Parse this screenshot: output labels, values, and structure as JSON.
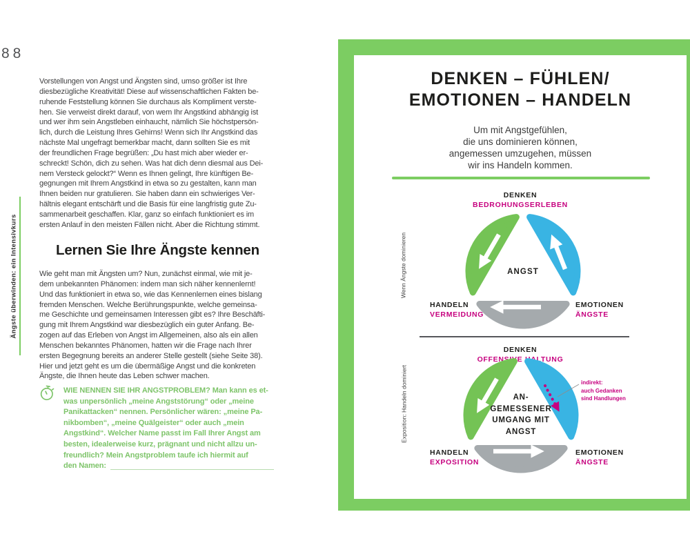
{
  "page": {
    "number": "88",
    "sidebar_label": "Ängste überwinden: ein Intensivkurs"
  },
  "left": {
    "paragraph1_lines": [
      "Vorstellungen von Angst und Ängsten sind, umso größer ist Ihre",
      "diesbezügliche Kreativität! Diese auf wissenschaftlichen Fakten be-",
      "ruhende Feststellung können Sie durchaus als Kompliment verste-",
      "hen. Sie verweist direkt darauf, von wem Ihr Angstkind abhängig ist",
      "und wer ihm sein Angstleben einhaucht, nämlich Sie höchstpersön-",
      "lich, durch die Leistung Ihres Gehirns! Wenn sich Ihr Angstkind das",
      "nächste Mal ungefragt bemerkbar macht, dann sollten Sie es mit",
      "der freundlichen Frage begrüßen: „Du hast mich aber wieder er-",
      "schreckt! Schön, dich zu sehen. Was hat dich denn diesmal aus Dei-",
      "nem Versteck gelockt?“ Wenn es Ihnen gelingt, Ihre künftigen Be-",
      "gegnungen mit Ihrem Angstkind in etwa so zu gestalten, kann man",
      "Ihnen beiden nur gratulieren. Sie haben dann ein schwieriges Ver-",
      "hältnis elegant entschärft und die Basis für eine langfristig gute Zu-",
      "sammenarbeit geschaffen. Klar, ganz so einfach funktioniert es im",
      "ersten Anlauf in den meisten Fällen nicht. Aber die Richtung stimmt."
    ],
    "heading": "Lernen Sie Ihre Ängste kennen",
    "paragraph2_lines": [
      "Wie geht man mit Ängsten um? Nun, zunächst einmal, wie mit je-",
      "dem unbekannten Phänomen: indem man sich näher kennenlernt!",
      "Und das funktioniert in etwa so, wie das Kennenlernen eines bislang",
      "fremden Menschen. Welche Berührungspunkte, welche gemeinsa-",
      "me Geschichte und gemeinsamen Interessen gibt es? Ihre Beschäfti-",
      "gung mit Ihrem Angstkind war diesbezüglich ein guter Anfang. Be-",
      "zogen auf das Erleben von Angst im Allgemeinen, also als ein allen",
      "Menschen bekanntes Phänomen, hatten wir die Frage nach Ihrer",
      "ersten Begegnung bereits an anderer Stelle gestellt (siehe Seite 38).",
      "Hier und jetzt geht es um die übermäßige Angst und die konkreten",
      "Ängste, die Ihnen heute das Leben schwer machen."
    ],
    "exercise": {
      "icon": "stopwatch-icon",
      "lines": [
        "WIE NENNEN SIE IHR ANGSTPROBLEM? Man kann es et-",
        "was unpersönlich „meine Angststörung“ oder „meine",
        "Panikattacken“ nennen. Persönlicher wären: „meine Pa-",
        "nikbomben“, „meine Quälgeister“ oder auch „mein",
        "Angstkind“. Welcher Name passt im Fall Ihrer Angst am",
        "besten, idealerweise kurz, prägnant und nicht allzu un-",
        "freundlich? Mein Angstproblem taufe ich hiermit auf"
      ],
      "last_line_label": "den Namen:"
    }
  },
  "panel": {
    "title_line1": "DENKEN – FÜHLEN/",
    "title_line2": "EMOTIONEN – HANDELN",
    "subtitle_lines": [
      "Um mit Angstgefühlen,",
      "die uns dominieren können,",
      "angemessen umzugehen, müssen",
      "wir ins Handeln kommen."
    ],
    "diagram1": {
      "side_label": "Wenn Ängste dominieren",
      "top_label": "DENKEN",
      "top_sublabel": "BEDROHUNGSERLEBEN",
      "center_label": "ANGST",
      "left_label": "HANDELN",
      "left_sublabel": "VERMEIDUNG",
      "right_label": "EMOTIONEN",
      "right_sublabel": "ÄNGSTE"
    },
    "diagram2": {
      "side_label": "Exposition: Handeln dominiert",
      "top_label": "DENKEN",
      "top_sublabel": "OFFENSIVE HALTUNG",
      "center_lines": [
        "AN-",
        "GEMESSENER",
        "UMGANG MIT",
        "ANGST"
      ],
      "left_label": "HANDELN",
      "left_sublabel": "EXPOSITION",
      "right_label": "EMOTIONEN",
      "right_sublabel": "ÄNGSTE",
      "annotation_lines": [
        "indirekt:",
        "auch Gedanken",
        "sind Handlungen"
      ]
    }
  },
  "colors": {
    "green": "#7ccd62",
    "green-petal": "#74c355",
    "green-text": "#7ec46a",
    "blue": "#39b4e3",
    "gray-petal": "#a5aaad",
    "magenta": "#c6017f",
    "ink": "#1d1d1b",
    "body-text": "#3f3f40",
    "gray-line": "#55565a",
    "underline": "#b7dcae"
  }
}
